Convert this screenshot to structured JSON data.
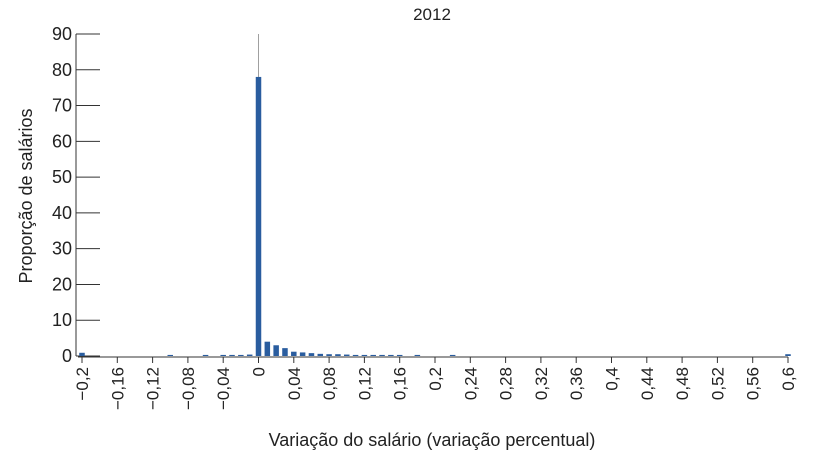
{
  "chart_data": {
    "type": "bar",
    "title": "2012",
    "xlabel": "Variação do salário (variação percentual)",
    "ylabel": "Proporção de salários",
    "ylim": [
      0,
      90
    ],
    "xlim": [
      -0.2,
      0.6
    ],
    "yticks": [
      0,
      10,
      20,
      30,
      40,
      50,
      60,
      70,
      80,
      90
    ],
    "ytick_labels": [
      "0",
      "10",
      "20",
      "30",
      "40",
      "50",
      "60",
      "70",
      "80",
      "90"
    ],
    "xticks": [
      -0.2,
      -0.16,
      -0.12,
      -0.08,
      -0.04,
      0,
      0.04,
      0.08,
      0.12,
      0.16,
      0.2,
      0.24,
      0.28,
      0.32,
      0.36,
      0.4,
      0.44,
      0.48,
      0.52,
      0.56,
      0.6
    ],
    "xtick_labels": [
      "−0,2",
      "−0,16",
      "−0,12",
      "−0,08",
      "−0,04",
      "0",
      "0,04",
      "0,08",
      "0,12",
      "0,16",
      "0,2",
      "0,24",
      "0,28",
      "0,32",
      "0,36",
      "0,4",
      "0,44",
      "0,48",
      "0,52",
      "0,56",
      "0,6"
    ],
    "grid": false,
    "bar_color": "#2a5d9f",
    "zero_line_color": "#a0a0a0",
    "x": [
      -0.2,
      -0.1,
      -0.06,
      -0.04,
      -0.03,
      -0.02,
      -0.01,
      0,
      0.01,
      0.02,
      0.03,
      0.04,
      0.05,
      0.06,
      0.07,
      0.08,
      0.09,
      0.1,
      0.11,
      0.12,
      0.13,
      0.14,
      0.15,
      0.16,
      0.18,
      0.22,
      0.6
    ],
    "values": [
      0.9,
      0.3,
      0.3,
      0.3,
      0.3,
      0.3,
      0.4,
      78,
      4.0,
      3.0,
      2.2,
      1.2,
      1.0,
      0.8,
      0.6,
      0.5,
      0.5,
      0.4,
      0.3,
      0.3,
      0.3,
      0.3,
      0.3,
      0.3,
      0.3,
      0.3,
      0.5
    ]
  }
}
